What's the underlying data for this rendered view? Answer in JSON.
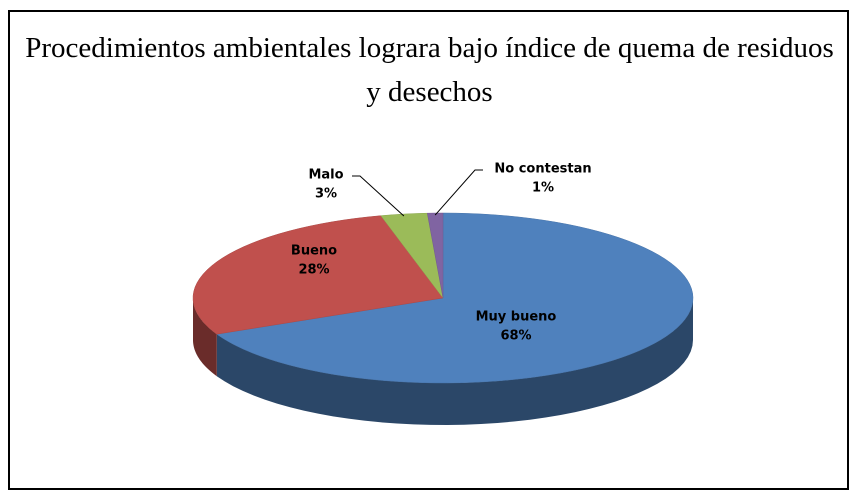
{
  "chart_data": {
    "type": "pie",
    "title": "Procedimientos ambientales lograra bajo índice de quema de residuos y desechos",
    "categories": [
      "Muy bueno",
      "Bueno",
      "Malo",
      "No contestan"
    ],
    "values": [
      68,
      28,
      3,
      1
    ],
    "value_labels": [
      "68%",
      "28%",
      "3%",
      "1%"
    ],
    "colors": [
      "#4f81bd",
      "#c0504d",
      "#9bbb59",
      "#8064a2"
    ]
  }
}
